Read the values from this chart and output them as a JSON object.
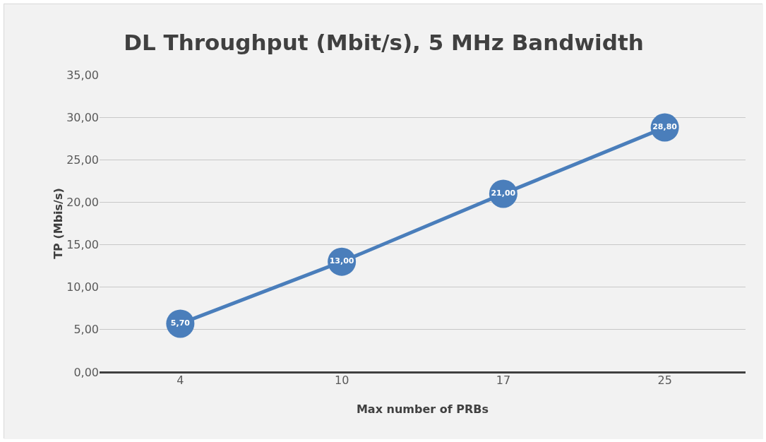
{
  "chart_data": {
    "type": "line",
    "title": "DL Throughput (Mbit/s), 5 MHz Bandwidth",
    "xlabel": "Max number of PRBs",
    "ylabel": "TP (Mbis/s)",
    "categories": [
      "4",
      "10",
      "17",
      "25"
    ],
    "series": [
      {
        "color": "#4a7ebb",
        "values": [
          5.7,
          13.0,
          21.0,
          28.8
        ],
        "value_labels": [
          "5,70",
          "13,00",
          "21,00",
          "28,80"
        ]
      }
    ],
    "ylim": [
      0,
      35
    ],
    "yticks": [
      {
        "value": 0,
        "label": "0,00"
      },
      {
        "value": 5,
        "label": "5,00"
      },
      {
        "value": 10,
        "label": "10,00"
      },
      {
        "value": 15,
        "label": "15,00"
      },
      {
        "value": 20,
        "label": "20,00"
      },
      {
        "value": 25,
        "label": "25,00"
      },
      {
        "value": 30,
        "label": "30,00"
      },
      {
        "value": 35,
        "label": "35,00"
      }
    ],
    "grid": "y",
    "marker": "circle",
    "line_style": "solid"
  }
}
